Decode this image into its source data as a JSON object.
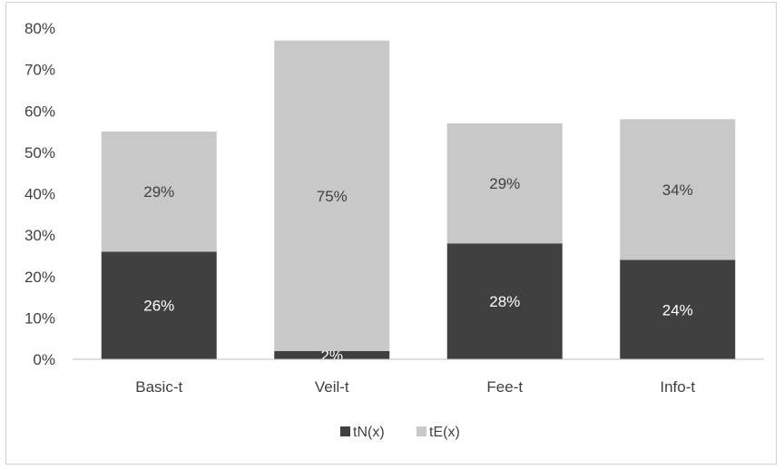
{
  "chart_data": {
    "type": "bar",
    "stacked": true,
    "categories": [
      "Basic-t",
      "Veil-t",
      "Fee-t",
      "Info-t"
    ],
    "series": [
      {
        "name": "tN(x)",
        "values": [
          26,
          2,
          28,
          24
        ],
        "labels": [
          "26%",
          "2%",
          "28%",
          "24%"
        ],
        "color": "#404040",
        "label_color": "#ffffff"
      },
      {
        "name": "tE(x)",
        "values": [
          29,
          75,
          29,
          34
        ],
        "labels": [
          "29%",
          "75%",
          "29%",
          "34%"
        ],
        "color": "#c8c8c8",
        "label_color": "#404040"
      }
    ],
    "ylim": [
      0,
      80
    ],
    "yticks": [
      "0%",
      "10%",
      "20%",
      "30%",
      "40%",
      "50%",
      "60%",
      "70%",
      "80%"
    ],
    "grid": false,
    "legend_position": "bottom"
  }
}
